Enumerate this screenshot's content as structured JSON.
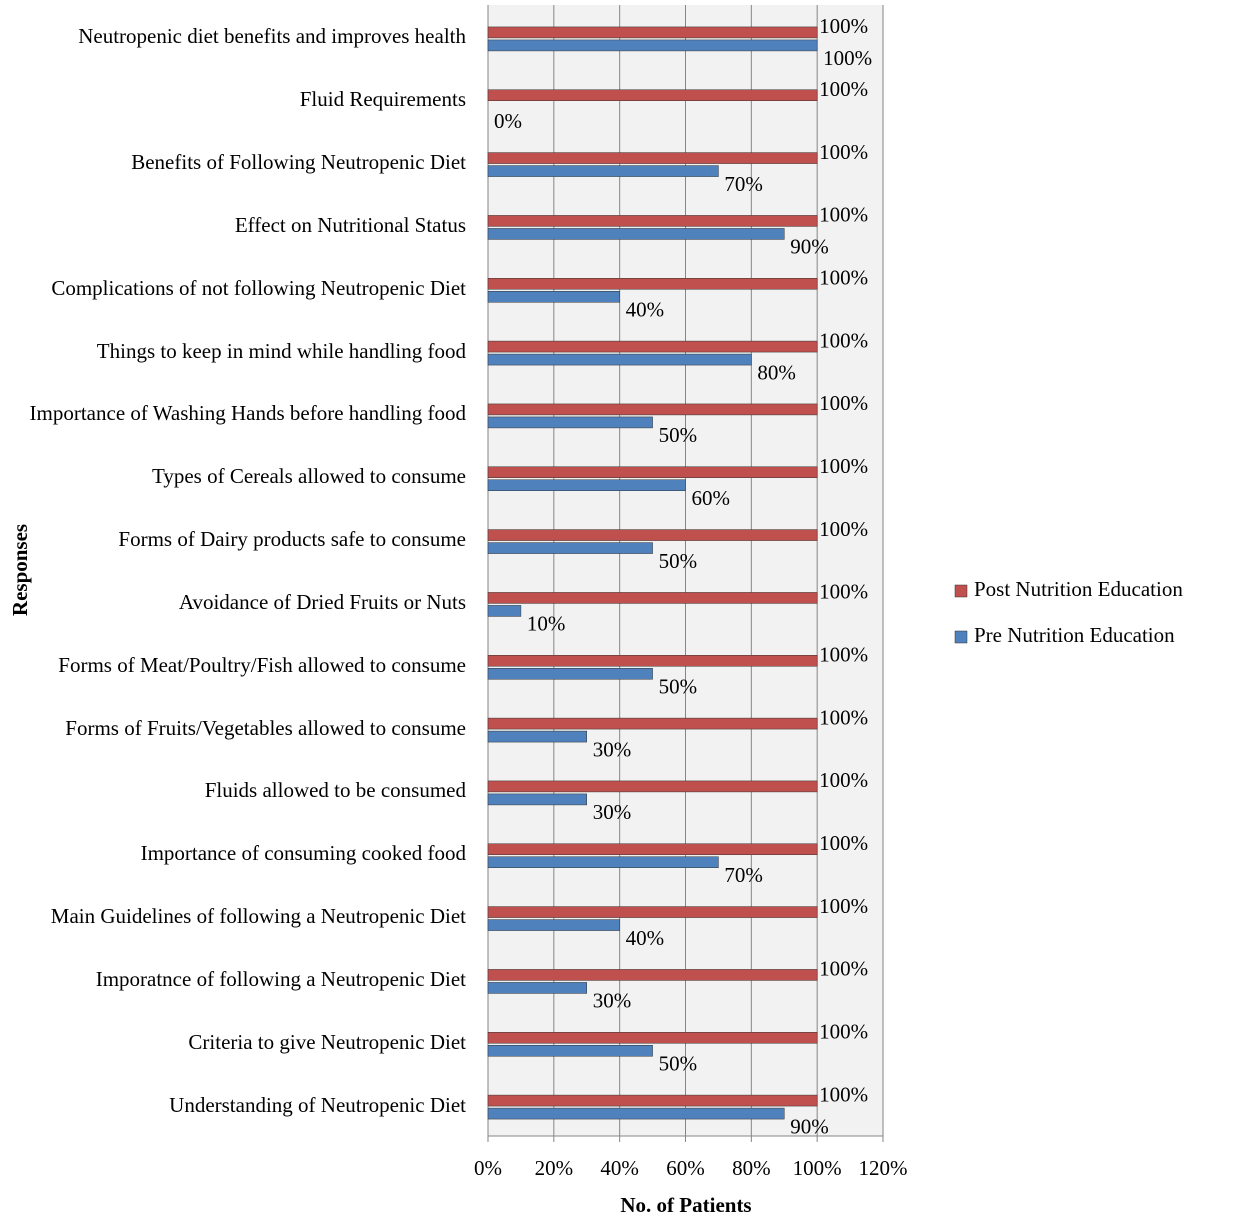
{
  "chart_data": {
    "type": "hbar",
    "x_label": "No. of Patients",
    "y_label": "Responses",
    "categories": [
      "Neutropenic diet benefits and improves health",
      "Fluid Requirements",
      "Benefits of Following Neutropenic Diet",
      "Effect on Nutritional Status",
      "Complications of not following Neutropenic Diet",
      "Things to keep in mind while handling food",
      "Importance of Washing Hands before handling food",
      "Types of Cereals allowed to consume",
      "Forms of Dairy products safe to consume",
      "Avoidance of Dried Fruits or Nuts",
      "Forms of Meat/Poultry/Fish allowed to consume",
      "Forms of Fruits/Vegetables allowed to consume",
      "Fluids allowed to be consumed",
      "Importance of consuming cooked food",
      "Main Guidelines of following a Neutropenic Diet",
      "Imporatnce of following a Neutropenic Diet",
      "Criteria to give Neutropenic Diet",
      "Understanding of Neutropenic Diet"
    ],
    "series": [
      {
        "name": "Post Nutrition Education",
        "color": "#c0504d",
        "values": [
          100,
          100,
          100,
          100,
          100,
          100,
          100,
          100,
          100,
          100,
          100,
          100,
          100,
          100,
          100,
          100,
          100,
          100
        ],
        "value_labels": [
          "100%",
          "100%",
          "100%",
          "100%",
          "100%",
          "100%",
          "100%",
          "100%",
          "100%",
          "100%",
          "100%",
          "100%",
          "100%",
          "100%",
          "100%",
          "100%",
          "100%",
          "100%"
        ]
      },
      {
        "name": "Pre Nutrition Education",
        "color": "#4f81bd",
        "values": [
          100,
          0,
          70,
          90,
          40,
          80,
          50,
          60,
          50,
          10,
          50,
          30,
          30,
          70,
          40,
          30,
          50,
          90
        ],
        "value_labels": [
          "100%",
          "0%",
          "70%",
          "90%",
          "40%",
          "80%",
          "50%",
          "60%",
          "50%",
          "10%",
          "50%",
          "30%",
          "30%",
          "70%",
          "40%",
          "30%",
          "50%",
          "90%"
        ]
      }
    ],
    "xlim": [
      0,
      120
    ],
    "xticks": [
      {
        "value": 0,
        "label": "0%"
      },
      {
        "value": 20,
        "label": "20%"
      },
      {
        "value": 40,
        "label": "40%"
      },
      {
        "value": 60,
        "label": "60%"
      },
      {
        "value": 80,
        "label": "80%"
      },
      {
        "value": 100,
        "label": "100%"
      },
      {
        "value": 120,
        "label": "120%"
      }
    ],
    "grid": true,
    "legend": "right"
  }
}
